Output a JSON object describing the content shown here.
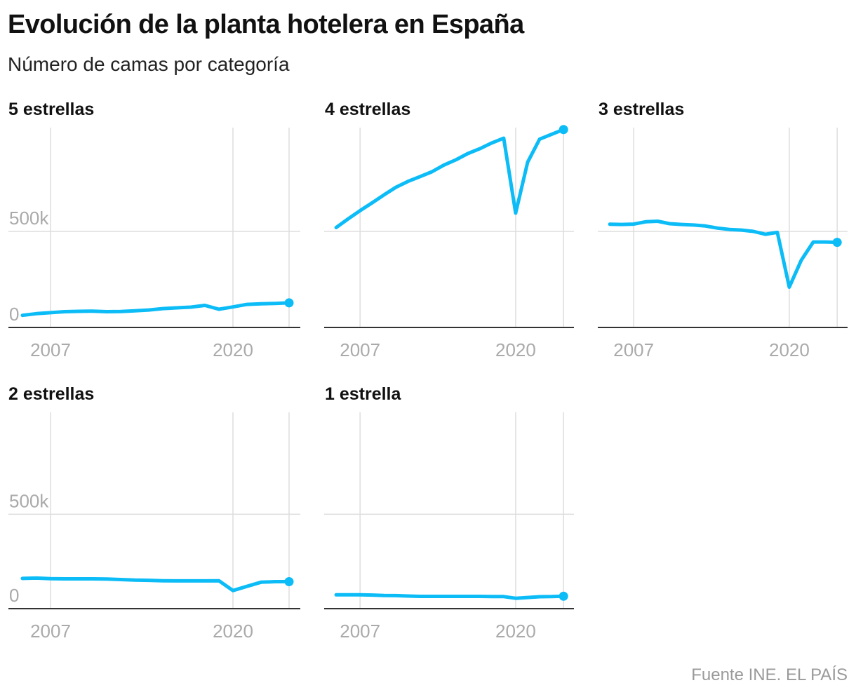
{
  "title": "Evolución de la planta hotelera en España",
  "subtitle": "Número de camas por categoría",
  "source": "Fuente INE. EL PAÍS",
  "colors": {
    "line": "#0cbcf7",
    "grid": "#dddddd",
    "axis": "#333333",
    "tick_text": "#aaaaaa"
  },
  "chart_data": [
    {
      "type": "line",
      "title": "5 estrellas",
      "x": [
        2005,
        2006,
        2007,
        2008,
        2009,
        2010,
        2011,
        2012,
        2013,
        2014,
        2015,
        2016,
        2017,
        2018,
        2019,
        2020,
        2021,
        2022,
        2023,
        2024
      ],
      "values": [
        63000,
        72000,
        77000,
        82000,
        84000,
        85000,
        82000,
        83000,
        87000,
        91000,
        98000,
        102000,
        106000,
        115000,
        95000,
        107000,
        120000,
        123000,
        125000,
        128000
      ],
      "x_ticks": [
        2007,
        2020
      ],
      "x_tick_labels": [
        "2007",
        "2020"
      ],
      "y_ticks": [
        0,
        500000
      ],
      "y_tick_labels": [
        "0",
        "500k"
      ],
      "ylim": [
        0,
        1040000
      ],
      "xlim": [
        2004,
        2024.4
      ],
      "grid": true,
      "end_marker": true
    },
    {
      "type": "line",
      "title": "4 estrellas",
      "x": [
        2005,
        2006,
        2007,
        2008,
        2009,
        2010,
        2011,
        2012,
        2013,
        2014,
        2015,
        2016,
        2017,
        2018,
        2019,
        2020,
        2021,
        2022,
        2023,
        2024
      ],
      "values": [
        520000,
        565000,
        608000,
        648000,
        690000,
        730000,
        760000,
        785000,
        810000,
        845000,
        872000,
        905000,
        930000,
        960000,
        985000,
        595000,
        860000,
        980000,
        1005000,
        1030000
      ],
      "x_ticks": [
        2007,
        2020
      ],
      "x_tick_labels": [
        "2007",
        "2020"
      ],
      "y_ticks": [
        0,
        500000
      ],
      "y_tick_labels": [
        "",
        ""
      ],
      "ylim": [
        0,
        1040000
      ],
      "xlim": [
        2004,
        2024.4
      ],
      "grid": true,
      "end_marker": true
    },
    {
      "type": "line",
      "title": "3 estrellas",
      "x": [
        2005,
        2006,
        2007,
        2008,
        2009,
        2010,
        2011,
        2012,
        2013,
        2014,
        2015,
        2016,
        2017,
        2018,
        2019,
        2020,
        2021,
        2022,
        2023,
        2024
      ],
      "values": [
        537000,
        536000,
        538000,
        550000,
        553000,
        540000,
        536000,
        533000,
        528000,
        517000,
        510000,
        507000,
        500000,
        485000,
        495000,
        210000,
        350000,
        445000,
        445000,
        443000
      ],
      "x_ticks": [
        2007,
        2020
      ],
      "x_tick_labels": [
        "2007",
        "2020"
      ],
      "y_ticks": [
        0,
        500000
      ],
      "y_tick_labels": [
        "",
        ""
      ],
      "ylim": [
        0,
        1040000
      ],
      "xlim": [
        2004,
        2024.4
      ],
      "grid": true,
      "end_marker": true
    },
    {
      "type": "line",
      "title": "2 estrellas",
      "x": [
        2005,
        2006,
        2007,
        2008,
        2009,
        2010,
        2011,
        2012,
        2013,
        2014,
        2015,
        2016,
        2017,
        2018,
        2019,
        2020,
        2021,
        2022,
        2023,
        2024
      ],
      "values": [
        160000,
        162000,
        159000,
        158000,
        158000,
        158000,
        157000,
        154000,
        151000,
        150000,
        148000,
        147000,
        147000,
        147000,
        148000,
        96000,
        118000,
        140000,
        143000,
        143000
      ],
      "x_ticks": [
        2007,
        2020
      ],
      "x_tick_labels": [
        "2007",
        "2020"
      ],
      "y_ticks": [
        0,
        500000
      ],
      "y_tick_labels": [
        "0",
        "500k"
      ],
      "ylim": [
        0,
        1040000
      ],
      "xlim": [
        2004,
        2024.4
      ],
      "grid": true,
      "end_marker": true
    },
    {
      "type": "line",
      "title": "1 estrella",
      "x": [
        2005,
        2006,
        2007,
        2008,
        2009,
        2010,
        2011,
        2012,
        2013,
        2014,
        2015,
        2016,
        2017,
        2018,
        2019,
        2020,
        2021,
        2022,
        2023,
        2024
      ],
      "values": [
        73000,
        73000,
        73000,
        72000,
        70000,
        69000,
        67000,
        65000,
        65000,
        65000,
        65000,
        65000,
        65000,
        64000,
        64000,
        55000,
        59000,
        63000,
        64000,
        66000
      ],
      "x_ticks": [
        2007,
        2020
      ],
      "x_tick_labels": [
        "2007",
        "2020"
      ],
      "y_ticks": [
        0,
        500000
      ],
      "y_tick_labels": [
        "",
        ""
      ],
      "ylim": [
        0,
        1040000
      ],
      "xlim": [
        2004,
        2024.4
      ],
      "grid": true,
      "end_marker": true
    }
  ]
}
